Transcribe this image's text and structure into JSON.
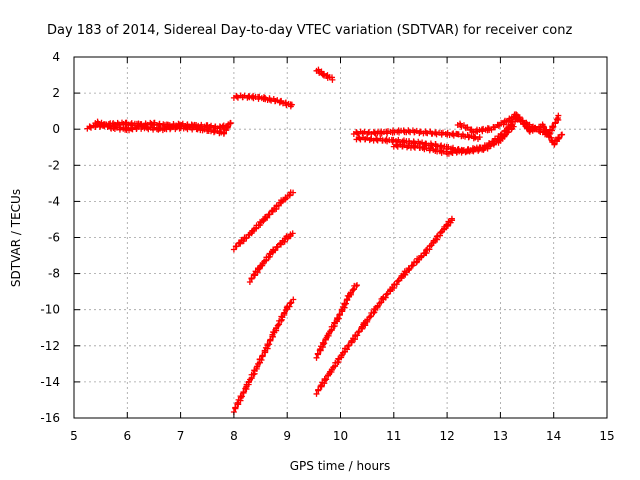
{
  "chart_data": {
    "type": "scatter",
    "title": "Day 183 of 2014, Sidereal Day-to-day VTEC variation (SDTVAR) for receiver conz",
    "xlabel": "GPS time / hours",
    "ylabel": "SDTVAR / TECUs",
    "xlim": [
      5,
      15
    ],
    "ylim": [
      -16,
      4
    ],
    "grid": true,
    "marker": "plus",
    "color": "#ff0000",
    "xticks": [
      "5",
      "6",
      "7",
      "8",
      "9",
      "10",
      "11",
      "12",
      "13",
      "14",
      "15"
    ],
    "yticks": [
      "4",
      "2",
      "0",
      "-2",
      "-4",
      "-6",
      "-8",
      "-10",
      "-12",
      "-14",
      "-16"
    ],
    "series": [
      {
        "name": "seg-a",
        "points": [
          [
            5.25,
            0.1
          ],
          [
            5.5,
            0.2
          ],
          [
            5.75,
            0.3
          ],
          [
            6.0,
            0.3
          ],
          [
            6.25,
            0.25
          ],
          [
            6.5,
            0.3
          ],
          [
            6.75,
            0.2
          ],
          [
            7.0,
            0.25
          ],
          [
            7.25,
            0.2
          ],
          [
            7.5,
            0.15
          ],
          [
            7.75,
            0.1
          ],
          [
            7.9,
            0.2
          ]
        ]
      },
      {
        "name": "seg-a2",
        "points": [
          [
            5.4,
            0.4
          ],
          [
            5.7,
            0.1
          ],
          [
            6.0,
            0.0
          ],
          [
            6.3,
            0.1
          ],
          [
            6.6,
            0.0
          ],
          [
            7.0,
            0.1
          ],
          [
            7.4,
            0.0
          ],
          [
            7.8,
            -0.2
          ],
          [
            7.95,
            0.4
          ]
        ]
      },
      {
        "name": "seg-b",
        "points": [
          [
            8.0,
            1.8
          ],
          [
            8.3,
            1.8
          ],
          [
            8.6,
            1.7
          ],
          [
            8.9,
            1.5
          ],
          [
            9.1,
            1.3
          ]
        ]
      },
      {
        "name": "seg-c",
        "points": [
          [
            9.55,
            3.3
          ],
          [
            9.7,
            3.0
          ],
          [
            9.85,
            2.8
          ]
        ]
      },
      {
        "name": "seg-d",
        "points": [
          [
            8.0,
            -6.6
          ],
          [
            8.3,
            -5.8
          ],
          [
            8.6,
            -4.9
          ],
          [
            8.9,
            -4.0
          ],
          [
            9.1,
            -3.5
          ]
        ]
      },
      {
        "name": "seg-e",
        "points": [
          [
            8.3,
            -8.4
          ],
          [
            8.5,
            -7.6
          ],
          [
            8.75,
            -6.7
          ],
          [
            9.0,
            -6.0
          ],
          [
            9.1,
            -5.8
          ]
        ]
      },
      {
        "name": "seg-f",
        "points": [
          [
            8.0,
            -15.6
          ],
          [
            8.25,
            -14.2
          ],
          [
            8.5,
            -12.8
          ],
          [
            8.75,
            -11.3
          ],
          [
            9.0,
            -9.9
          ],
          [
            9.1,
            -9.5
          ]
        ]
      },
      {
        "name": "seg-g",
        "points": [
          [
            9.55,
            -12.6
          ],
          [
            9.75,
            -11.5
          ],
          [
            9.95,
            -10.5
          ],
          [
            10.15,
            -9.3
          ],
          [
            10.3,
            -8.6
          ]
        ]
      },
      {
        "name": "seg-h",
        "points": [
          [
            9.55,
            -14.6
          ],
          [
            9.8,
            -13.5
          ],
          [
            10.1,
            -12.2
          ],
          [
            10.45,
            -10.8
          ],
          [
            10.8,
            -9.4
          ],
          [
            11.2,
            -8.0
          ],
          [
            11.6,
            -6.8
          ],
          [
            12.0,
            -5.3
          ],
          [
            12.1,
            -5.0
          ]
        ]
      },
      {
        "name": "seg-i",
        "points": [
          [
            10.25,
            -0.2
          ],
          [
            10.7,
            -0.2
          ],
          [
            11.2,
            -0.1
          ],
          [
            11.7,
            -0.2
          ],
          [
            12.2,
            -0.3
          ],
          [
            12.6,
            -0.5
          ]
        ]
      },
      {
        "name": "seg-j",
        "points": [
          [
            10.3,
            -0.5
          ],
          [
            10.8,
            -0.6
          ],
          [
            11.3,
            -0.7
          ],
          [
            11.8,
            -0.9
          ],
          [
            12.3,
            -1.2
          ],
          [
            12.7,
            -1.0
          ],
          [
            13.0,
            -0.4
          ],
          [
            13.3,
            0.6
          ],
          [
            13.6,
            0.1
          ],
          [
            13.9,
            -0.3
          ],
          [
            14.1,
            0.7
          ]
        ]
      },
      {
        "name": "seg-k",
        "points": [
          [
            12.2,
            0.3
          ],
          [
            12.5,
            -0.1
          ],
          [
            12.8,
            0.0
          ],
          [
            13.1,
            0.4
          ],
          [
            13.3,
            0.8
          ],
          [
            13.55,
            -0.1
          ],
          [
            13.8,
            0.2
          ],
          [
            14.0,
            -0.8
          ],
          [
            14.15,
            -0.3
          ]
        ]
      },
      {
        "name": "seg-l",
        "points": [
          [
            11.0,
            -0.9
          ],
          [
            11.5,
            -1.0
          ],
          [
            12.0,
            -1.3
          ],
          [
            12.4,
            -1.2
          ],
          [
            12.7,
            -1.1
          ],
          [
            13.0,
            -0.6
          ],
          [
            13.25,
            0.2
          ]
        ]
      }
    ]
  }
}
